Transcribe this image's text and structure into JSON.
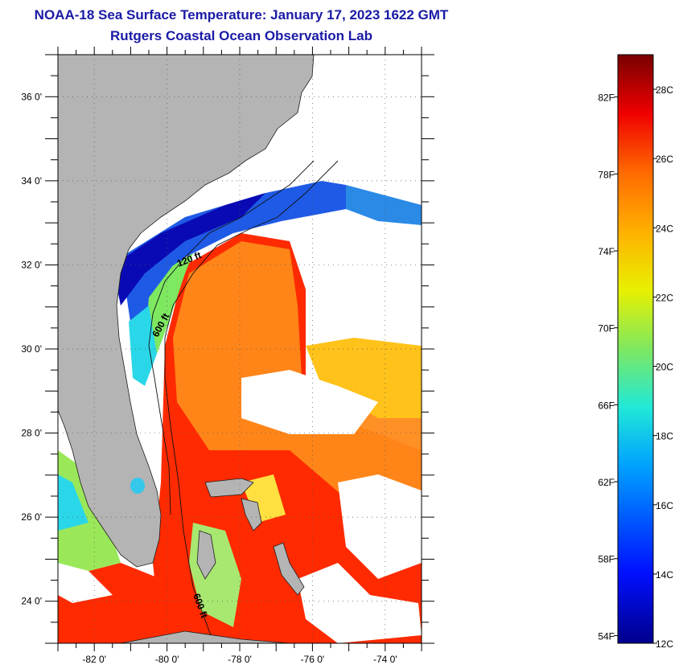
{
  "header": {
    "title_line1": "NOAA-18 Sea Surface Temperature:  January 17, 2023 1622 GMT",
    "title_line2": "Rutgers Coastal Ocean Observation Lab"
  },
  "map": {
    "lat_ticks": [
      "36 0'",
      "34 0'",
      "32 0'",
      "30 0'",
      "28 0'",
      "26 0'",
      "24 0'"
    ],
    "lon_ticks": [
      "-82 0'",
      "-80 0'",
      "-78 0'",
      "-76 0'",
      "-74 0'"
    ],
    "lat_values": [
      36,
      34,
      32,
      30,
      28,
      26,
      24
    ],
    "lon_values": [
      -82,
      -80,
      -78,
      -76,
      -74
    ],
    "lat_range": [
      23,
      37
    ],
    "lon_range": [
      -83,
      -73
    ],
    "contours": [
      {
        "label": "120 ft"
      },
      {
        "label": "600 ft"
      },
      {
        "label": "600 ft"
      }
    ],
    "colors": {
      "land": "#b4b4b4",
      "cloud": "#ffffff",
      "warm": "#ff2a00",
      "orange": "#ff8a1a",
      "yellow": "#ffd21a",
      "green": "#8cf05a",
      "cyan": "#2ad7e8",
      "blue": "#1650e6",
      "darkblue": "#0a0ab4"
    }
  },
  "colorbar": {
    "fahrenheit_labels": [
      "82F",
      "78F",
      "74F",
      "70F",
      "66F",
      "62F",
      "58F",
      "54F"
    ],
    "celsius_labels": [
      "28C",
      "26C",
      "24C",
      "22C",
      "20C",
      "18C",
      "16C",
      "14C",
      "12C"
    ],
    "fahrenheit_values": [
      82,
      78,
      74,
      70,
      66,
      62,
      58,
      54
    ],
    "celsius_values": [
      28,
      26,
      24,
      22,
      20,
      18,
      16,
      14,
      12
    ],
    "range_c": [
      12,
      29
    ]
  }
}
